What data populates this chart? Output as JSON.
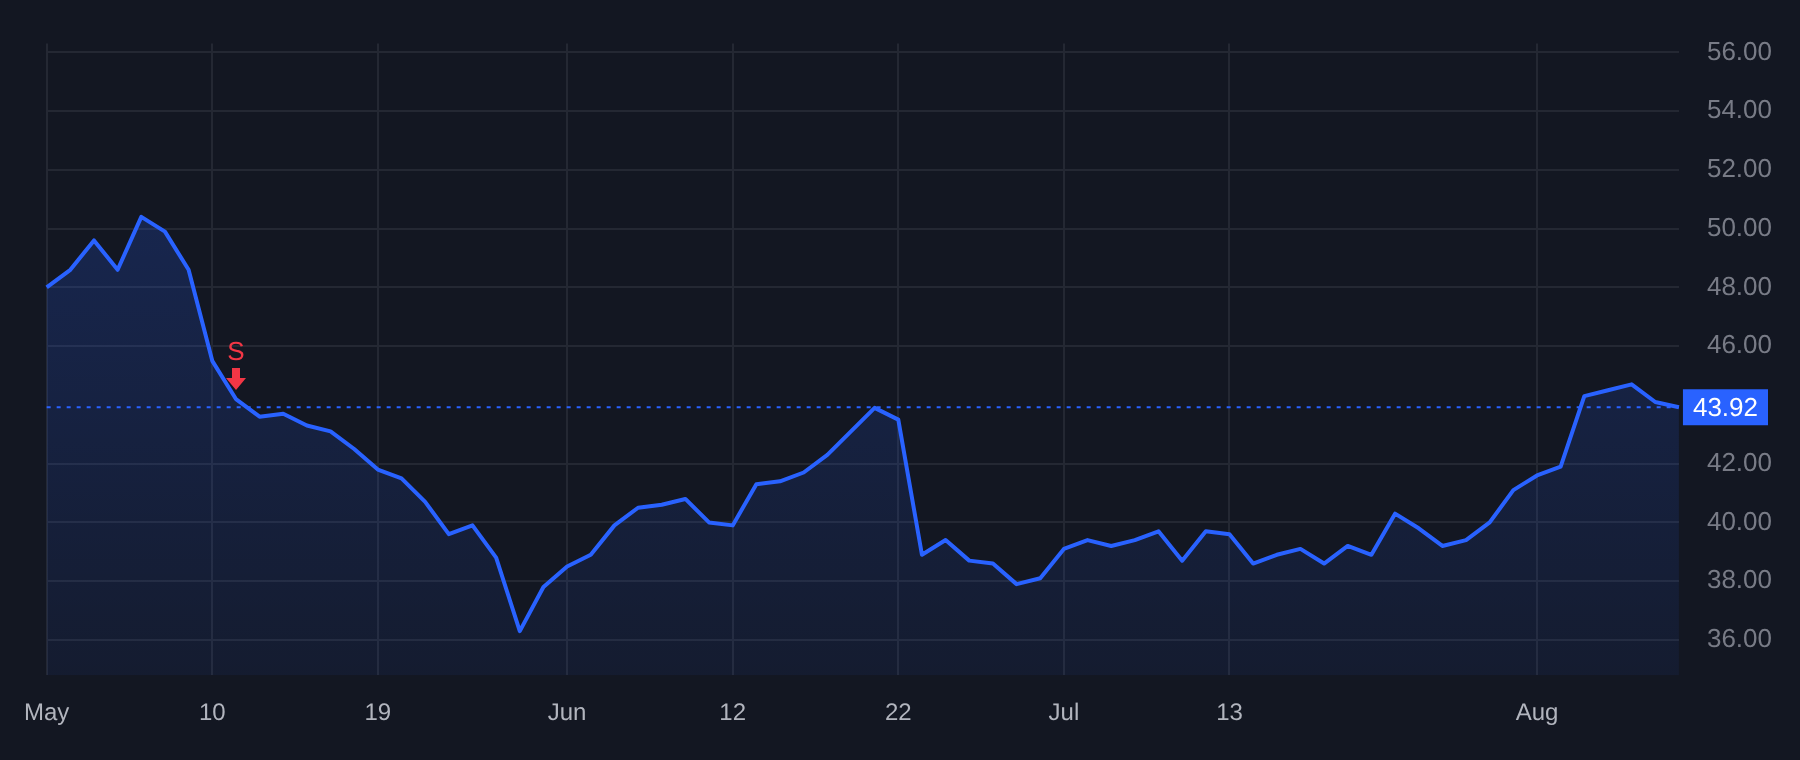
{
  "chart_data": {
    "type": "area",
    "categories": [
      "May",
      null,
      null,
      null,
      null,
      null,
      null,
      "10",
      null,
      null,
      null,
      null,
      null,
      null,
      "19",
      null,
      null,
      null,
      null,
      null,
      null,
      null,
      "Jun",
      null,
      null,
      null,
      null,
      null,
      null,
      "12",
      null,
      null,
      null,
      null,
      null,
      null,
      "22",
      null,
      null,
      null,
      null,
      null,
      null,
      "Jul",
      null,
      null,
      null,
      null,
      null,
      null,
      "13",
      null,
      null,
      null,
      null,
      null,
      null,
      null,
      null,
      null,
      null,
      null,
      null,
      "Aug",
      null,
      null,
      null,
      null,
      null,
      null
    ],
    "series": [
      {
        "color": "#2962ff",
        "values": [
          48.0,
          48.6,
          49.6,
          48.6,
          50.4,
          49.9,
          48.6,
          45.5,
          44.2,
          43.6,
          43.7,
          43.3,
          43.1,
          42.5,
          41.8,
          41.5,
          40.7,
          39.6,
          39.9,
          38.8,
          36.3,
          37.8,
          38.5,
          38.9,
          39.9,
          40.5,
          40.6,
          40.8,
          40.0,
          39.9,
          41.3,
          41.4,
          41.7,
          42.3,
          43.1,
          43.9,
          43.5,
          38.9,
          39.4,
          38.7,
          38.6,
          37.9,
          38.1,
          39.1,
          39.4,
          39.2,
          39.4,
          39.7,
          38.7,
          39.7,
          39.6,
          38.6,
          38.9,
          39.1,
          38.6,
          39.2,
          38.9,
          40.3,
          39.8,
          39.2,
          39.4,
          40.0,
          41.1,
          41.6,
          41.9,
          44.3,
          44.5,
          44.7,
          44.1,
          43.92
        ]
      }
    ],
    "ylim": [
      34.8,
      56.3
    ],
    "yticks": [
      {
        "value": 36,
        "label": "36.00"
      },
      {
        "value": 38,
        "label": "38.00"
      },
      {
        "value": 40,
        "label": "40.00"
      },
      {
        "value": 42,
        "label": "42.00"
      },
      {
        "value": 46,
        "label": "46.00"
      },
      {
        "value": 48,
        "label": "48.00"
      },
      {
        "value": 50,
        "label": "50.00"
      },
      {
        "value": 52,
        "label": "52.00"
      },
      {
        "value": 54,
        "label": "54.00"
      },
      {
        "value": 56,
        "label": "56.00"
      }
    ],
    "ref_lines": [
      {
        "axis": "y",
        "value": 43.92,
        "label": "43.92",
        "color": "#2962ff",
        "line_style": "dotted"
      }
    ],
    "annotations": [
      {
        "text": "S",
        "y": 44.5
      }
    ],
    "grid": true,
    "legend": false,
    "marker": "none",
    "line_style": "solid"
  }
}
